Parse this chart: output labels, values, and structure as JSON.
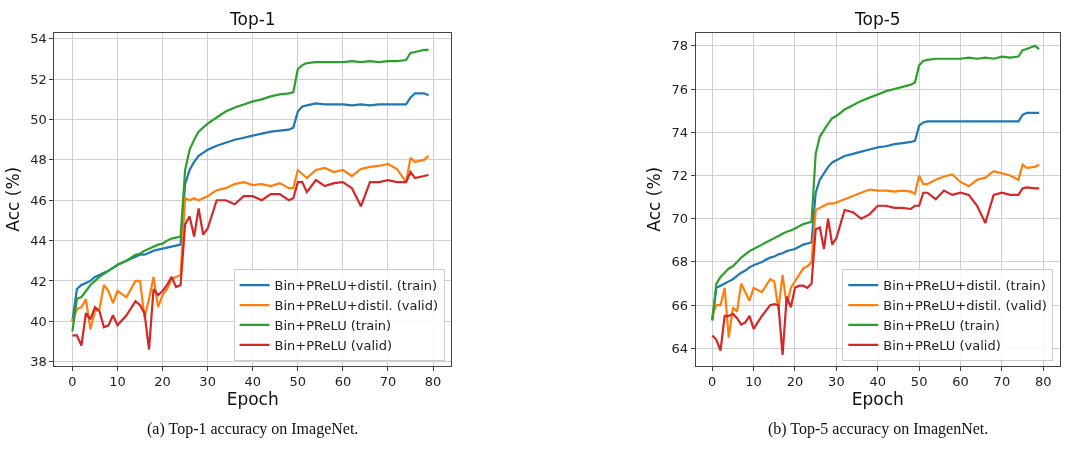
{
  "chart_data": [
    {
      "type": "line",
      "title": "Top-1",
      "xlabel": "Epoch",
      "ylabel": "Acc (%)",
      "grid": true,
      "legend": "bottom right",
      "xlim": [
        -4,
        84
      ],
      "xticks": [
        0,
        10,
        20,
        30,
        40,
        50,
        60,
        70,
        80
      ],
      "ylim": [
        37.8,
        54.3
      ],
      "yticks": [
        38,
        40,
        42,
        44,
        46,
        48,
        50,
        52,
        54
      ],
      "annotations": [
        "(a) Top-1 accuracy on ImageNet."
      ],
      "x": [
        0,
        1,
        2,
        3,
        4,
        5,
        6,
        7,
        8,
        9,
        10,
        12,
        14,
        15,
        16,
        17,
        18,
        19,
        20,
        21,
        22,
        23,
        24,
        25,
        26,
        27,
        28,
        29,
        30,
        32,
        34,
        36,
        38,
        40,
        42,
        44,
        46,
        48,
        49,
        50,
        51,
        52,
        54,
        56,
        58,
        60,
        62,
        64,
        66,
        68,
        70,
        72,
        74,
        75,
        76,
        78,
        79
      ],
      "series": [
        {
          "name": "Bin+PReLU+distil. (train)",
          "color": "#1f77b4",
          "values": [
            40.0,
            41.6,
            41.8,
            41.9,
            42.0,
            42.2,
            42.3,
            42.4,
            42.5,
            42.65,
            42.8,
            43.0,
            43.2,
            43.3,
            43.3,
            43.4,
            43.5,
            43.55,
            43.6,
            43.65,
            43.7,
            43.75,
            43.8,
            46.8,
            47.5,
            47.9,
            48.2,
            48.35,
            48.5,
            48.7,
            48.85,
            49.0,
            49.1,
            49.2,
            49.3,
            49.4,
            49.45,
            49.5,
            49.6,
            50.4,
            50.65,
            50.7,
            50.8,
            50.75,
            50.75,
            50.75,
            50.7,
            50.75,
            50.7,
            50.75,
            50.75,
            50.75,
            50.75,
            51.1,
            51.3,
            51.3,
            51.2
          ]
        },
        {
          "name": "Bin+PReLU+distil. (valid)",
          "color": "#ff7f0e",
          "values": [
            40.0,
            40.6,
            40.7,
            41.1,
            39.6,
            40.5,
            40.6,
            41.8,
            41.5,
            40.9,
            41.5,
            41.2,
            42.0,
            42.0,
            40.2,
            41.1,
            42.2,
            40.7,
            41.3,
            41.6,
            42.1,
            42.2,
            42.3,
            46.1,
            46.0,
            46.1,
            46.0,
            46.1,
            46.2,
            46.5,
            46.6,
            46.8,
            46.9,
            46.75,
            46.8,
            46.7,
            46.85,
            46.6,
            46.6,
            47.5,
            47.3,
            47.1,
            47.5,
            47.6,
            47.4,
            47.5,
            47.2,
            47.55,
            47.65,
            47.7,
            47.8,
            47.55,
            46.9,
            48.1,
            47.9,
            48.0,
            48.2
          ]
        },
        {
          "name": "Bin+PReLU (train)",
          "color": "#2ca02c",
          "values": [
            39.5,
            41.1,
            41.2,
            41.5,
            41.8,
            42.0,
            42.2,
            42.35,
            42.5,
            42.65,
            42.8,
            43.0,
            43.3,
            43.35,
            43.5,
            43.6,
            43.7,
            43.8,
            43.85,
            44.0,
            44.1,
            44.15,
            44.2,
            47.5,
            48.5,
            49.0,
            49.4,
            49.6,
            49.8,
            50.1,
            50.4,
            50.6,
            50.75,
            50.9,
            51.0,
            51.15,
            51.25,
            51.3,
            51.35,
            52.5,
            52.7,
            52.8,
            52.85,
            52.85,
            52.85,
            52.85,
            52.9,
            52.85,
            52.9,
            52.85,
            52.9,
            52.9,
            52.95,
            53.3,
            53.35,
            53.45,
            53.45
          ]
        },
        {
          "name": "Bin+PReLU (valid)",
          "color": "#d62728",
          "values": [
            39.3,
            39.3,
            38.8,
            40.4,
            40.1,
            40.7,
            40.5,
            39.7,
            39.8,
            40.3,
            39.8,
            40.3,
            41.0,
            40.8,
            40.4,
            38.6,
            41.6,
            41.3,
            41.5,
            41.8,
            42.2,
            41.7,
            41.8,
            44.8,
            45.2,
            44.2,
            45.6,
            44.3,
            44.6,
            46.0,
            46.0,
            45.8,
            46.2,
            46.2,
            46.0,
            46.3,
            46.3,
            46.0,
            46.1,
            46.9,
            46.9,
            46.4,
            47.0,
            46.7,
            46.85,
            46.9,
            46.6,
            45.7,
            46.9,
            46.9,
            47.0,
            46.9,
            46.9,
            47.4,
            47.1,
            47.2,
            47.25
          ]
        }
      ]
    },
    {
      "type": "line",
      "title": "Top-5",
      "xlabel": "Epoch",
      "ylabel": "Acc (%)",
      "grid": true,
      "legend": "bottom right",
      "xlim": [
        -4,
        84
      ],
      "xticks": [
        0,
        10,
        20,
        30,
        40,
        50,
        60,
        70,
        80
      ],
      "ylim": [
        63.2,
        78.6
      ],
      "yticks": [
        64,
        66,
        68,
        70,
        72,
        74,
        76,
        78
      ],
      "annotations": [
        "(b) Top-5 accuracy on ImagenNet."
      ],
      "x": [
        0,
        1,
        2,
        3,
        4,
        5,
        6,
        7,
        8,
        9,
        10,
        12,
        14,
        15,
        16,
        17,
        18,
        19,
        20,
        21,
        22,
        23,
        24,
        25,
        26,
        27,
        28,
        29,
        30,
        32,
        34,
        36,
        38,
        40,
        42,
        44,
        46,
        48,
        49,
        50,
        51,
        52,
        54,
        56,
        58,
        60,
        62,
        64,
        66,
        68,
        70,
        72,
        74,
        75,
        76,
        78,
        79
      ],
      "series": [
        {
          "name": "Bin+PReLU+distil. (train)",
          "color": "#1f77b4",
          "values": [
            65.3,
            66.8,
            66.9,
            67.0,
            67.1,
            67.2,
            67.35,
            67.5,
            67.6,
            67.75,
            67.85,
            68.0,
            68.2,
            68.25,
            68.35,
            68.4,
            68.5,
            68.55,
            68.6,
            68.7,
            68.8,
            68.85,
            68.9,
            71.2,
            71.8,
            72.1,
            72.4,
            72.6,
            72.7,
            72.9,
            73.0,
            73.1,
            73.2,
            73.3,
            73.35,
            73.45,
            73.5,
            73.55,
            73.6,
            74.3,
            74.45,
            74.5,
            74.5,
            74.5,
            74.5,
            74.5,
            74.5,
            74.5,
            74.5,
            74.5,
            74.5,
            74.5,
            74.5,
            74.8,
            74.9,
            74.9,
            74.9
          ]
        },
        {
          "name": "Bin+PReLU+distil. (valid)",
          "color": "#ff7f0e",
          "values": [
            65.5,
            66.0,
            66.0,
            66.8,
            64.5,
            65.9,
            65.7,
            67.0,
            66.6,
            66.2,
            66.8,
            66.6,
            67.2,
            67.1,
            65.8,
            67.4,
            66.0,
            66.8,
            67.1,
            67.4,
            67.7,
            67.8,
            68.0,
            70.4,
            70.5,
            70.6,
            70.7,
            70.7,
            70.75,
            70.9,
            71.05,
            71.2,
            71.35,
            71.3,
            71.3,
            71.25,
            71.3,
            71.25,
            71.15,
            72.0,
            71.6,
            71.6,
            71.8,
            71.95,
            72.05,
            71.7,
            71.5,
            71.8,
            71.9,
            72.2,
            72.1,
            72.0,
            71.8,
            72.5,
            72.35,
            72.4,
            72.5
          ]
        },
        {
          "name": "Bin+PReLU (train)",
          "color": "#2ca02c",
          "values": [
            65.3,
            67.0,
            67.3,
            67.5,
            67.7,
            67.8,
            68.0,
            68.2,
            68.35,
            68.5,
            68.6,
            68.8,
            69.0,
            69.1,
            69.2,
            69.3,
            69.4,
            69.45,
            69.55,
            69.65,
            69.75,
            69.8,
            69.85,
            73.0,
            73.8,
            74.1,
            74.4,
            74.65,
            74.75,
            75.05,
            75.25,
            75.45,
            75.6,
            75.75,
            75.9,
            76.0,
            76.1,
            76.2,
            76.3,
            77.1,
            77.3,
            77.35,
            77.4,
            77.4,
            77.4,
            77.4,
            77.45,
            77.4,
            77.45,
            77.4,
            77.5,
            77.45,
            77.5,
            77.8,
            77.85,
            78.0,
            77.85
          ]
        },
        {
          "name": "Bin+PReLU (valid)",
          "color": "#d62728",
          "values": [
            64.6,
            64.4,
            63.9,
            65.5,
            65.5,
            65.6,
            65.4,
            65.1,
            65.2,
            65.5,
            64.9,
            65.5,
            66.0,
            66.05,
            66.0,
            63.7,
            66.4,
            65.9,
            66.8,
            66.9,
            66.9,
            66.8,
            67.0,
            69.5,
            69.6,
            68.6,
            70.0,
            68.8,
            69.1,
            70.4,
            70.3,
            70.0,
            70.2,
            70.6,
            70.6,
            70.5,
            70.5,
            70.45,
            70.6,
            70.6,
            71.2,
            71.2,
            70.9,
            71.3,
            71.1,
            71.2,
            71.1,
            70.6,
            69.8,
            71.1,
            71.2,
            71.1,
            71.1,
            71.4,
            71.45,
            71.4,
            71.4
          ]
        }
      ]
    }
  ]
}
